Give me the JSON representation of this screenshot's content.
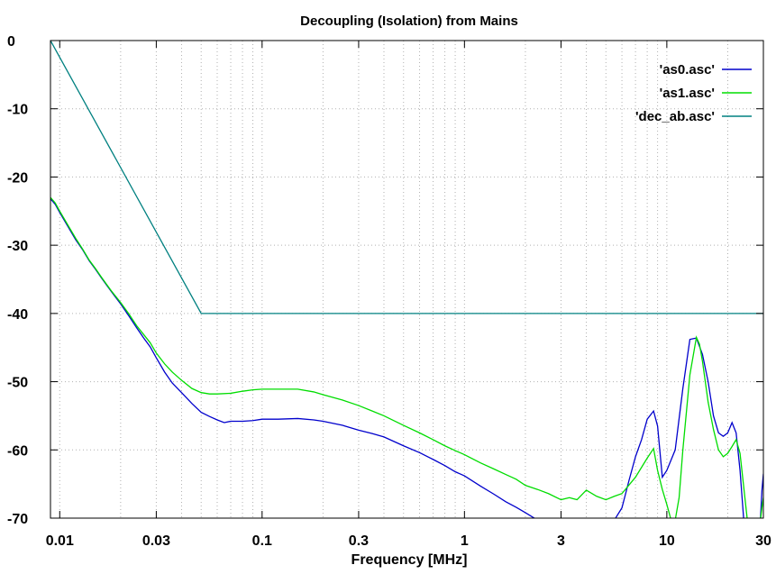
{
  "chart_data": {
    "type": "line",
    "title": "Decoupling (Isolation) from Mains",
    "xlabel": "Frequency [MHz]",
    "ylabel": "",
    "xscale": "log",
    "xlim": [
      0.009,
      30
    ],
    "ylim": [
      -70,
      0
    ],
    "x_ticks": [
      0.01,
      0.03,
      0.1,
      0.3,
      1,
      3,
      10,
      30
    ],
    "x_tick_labels": [
      "0.01",
      "0.03",
      "0.1",
      "0.3",
      "1",
      "3",
      "10",
      "30"
    ],
    "y_ticks": [
      0,
      -10,
      -20,
      -30,
      -40,
      -50,
      -60,
      -70
    ],
    "y_tick_labels": [
      "0",
      "-10",
      "-20",
      "-30",
      "-40",
      "-50",
      "-60",
      "-70"
    ],
    "grid": true,
    "legend_position": "top-right",
    "series": [
      {
        "name": "'as0.asc'",
        "color": "#0000cc",
        "points": [
          [
            0.009,
            -23.2
          ],
          [
            0.0095,
            -24
          ],
          [
            0.01,
            -25.2
          ],
          [
            0.011,
            -27.3
          ],
          [
            0.012,
            -29.2
          ],
          [
            0.013,
            -30.7
          ],
          [
            0.014,
            -32.3
          ],
          [
            0.015,
            -33.5
          ],
          [
            0.016,
            -34.7
          ],
          [
            0.017,
            -35.8
          ],
          [
            0.018,
            -36.8
          ],
          [
            0.02,
            -38.6
          ],
          [
            0.022,
            -40.4
          ],
          [
            0.024,
            -42.1
          ],
          [
            0.026,
            -43.6
          ],
          [
            0.028,
            -44.9
          ],
          [
            0.03,
            -46.5
          ],
          [
            0.033,
            -48.6
          ],
          [
            0.036,
            -50.2
          ],
          [
            0.04,
            -51.6
          ],
          [
            0.045,
            -53.2
          ],
          [
            0.05,
            -54.5
          ],
          [
            0.055,
            -55.1
          ],
          [
            0.06,
            -55.6
          ],
          [
            0.065,
            -56
          ],
          [
            0.07,
            -55.8
          ],
          [
            0.08,
            -55.8
          ],
          [
            0.09,
            -55.7
          ],
          [
            0.1,
            -55.5
          ],
          [
            0.12,
            -55.5
          ],
          [
            0.15,
            -55.4
          ],
          [
            0.18,
            -55.6
          ],
          [
            0.2,
            -55.8
          ],
          [
            0.25,
            -56.4
          ],
          [
            0.3,
            -57.1
          ],
          [
            0.35,
            -57.6
          ],
          [
            0.4,
            -58.1
          ],
          [
            0.5,
            -59.4
          ],
          [
            0.6,
            -60.4
          ],
          [
            0.7,
            -61.4
          ],
          [
            0.8,
            -62.3
          ],
          [
            0.9,
            -63.2
          ],
          [
            1.0,
            -63.8
          ],
          [
            1.2,
            -65.3
          ],
          [
            1.4,
            -66.5
          ],
          [
            1.6,
            -67.6
          ],
          [
            1.8,
            -68.4
          ],
          [
            2.0,
            -69.2
          ],
          [
            2.3,
            -70.3
          ],
          [
            5.5,
            -70.3
          ],
          [
            6.0,
            -68.5
          ],
          [
            6.5,
            -64.5
          ],
          [
            7.0,
            -61
          ],
          [
            7.5,
            -58.5
          ],
          [
            8.0,
            -55.5
          ],
          [
            8.6,
            -54.3
          ],
          [
            9.0,
            -56.5
          ],
          [
            9.5,
            -64
          ],
          [
            10.0,
            -63
          ],
          [
            11.0,
            -60
          ],
          [
            12.0,
            -51
          ],
          [
            13.0,
            -43.8
          ],
          [
            14.0,
            -43.6
          ],
          [
            15.0,
            -46
          ],
          [
            16.0,
            -50
          ],
          [
            17.0,
            -55
          ],
          [
            18.0,
            -57.5
          ],
          [
            19.0,
            -58
          ],
          [
            20.0,
            -57.5
          ],
          [
            21.0,
            -56
          ],
          [
            22.0,
            -57.5
          ],
          [
            23.0,
            -63
          ],
          [
            24.0,
            -70.3
          ],
          [
            29.0,
            -70.3
          ],
          [
            29.5,
            -66
          ],
          [
            30.0,
            -63.5
          ]
        ]
      },
      {
        "name": "'as1.asc'",
        "color": "#00dd00",
        "points": [
          [
            0.009,
            -23.0
          ],
          [
            0.0095,
            -23.8
          ],
          [
            0.01,
            -25.0
          ],
          [
            0.011,
            -27.1
          ],
          [
            0.012,
            -29.0
          ],
          [
            0.013,
            -30.6
          ],
          [
            0.014,
            -32.2
          ],
          [
            0.015,
            -33.4
          ],
          [
            0.016,
            -34.6
          ],
          [
            0.017,
            -35.7
          ],
          [
            0.018,
            -36.7
          ],
          [
            0.02,
            -38.4
          ],
          [
            0.022,
            -40.1
          ],
          [
            0.024,
            -41.8
          ],
          [
            0.026,
            -43.1
          ],
          [
            0.028,
            -44.3
          ],
          [
            0.03,
            -45.8
          ],
          [
            0.033,
            -47.4
          ],
          [
            0.036,
            -48.6
          ],
          [
            0.04,
            -49.8
          ],
          [
            0.045,
            -51.0
          ],
          [
            0.05,
            -51.6
          ],
          [
            0.055,
            -51.8
          ],
          [
            0.06,
            -51.8
          ],
          [
            0.07,
            -51.7
          ],
          [
            0.08,
            -51.4
          ],
          [
            0.09,
            -51.2
          ],
          [
            0.1,
            -51.1
          ],
          [
            0.12,
            -51.1
          ],
          [
            0.15,
            -51.1
          ],
          [
            0.18,
            -51.5
          ],
          [
            0.2,
            -51.9
          ],
          [
            0.25,
            -52.7
          ],
          [
            0.3,
            -53.5
          ],
          [
            0.35,
            -54.3
          ],
          [
            0.4,
            -55.0
          ],
          [
            0.5,
            -56.4
          ],
          [
            0.6,
            -57.5
          ],
          [
            0.7,
            -58.5
          ],
          [
            0.8,
            -59.4
          ],
          [
            0.9,
            -60.1
          ],
          [
            1.0,
            -60.7
          ],
          [
            1.2,
            -61.9
          ],
          [
            1.4,
            -62.8
          ],
          [
            1.6,
            -63.6
          ],
          [
            1.8,
            -64.3
          ],
          [
            2.0,
            -65.2
          ],
          [
            2.3,
            -65.8
          ],
          [
            2.6,
            -66.4
          ],
          [
            3.0,
            -67.3
          ],
          [
            3.3,
            -67.0
          ],
          [
            3.6,
            -67.3
          ],
          [
            4.0,
            -65.9
          ],
          [
            4.5,
            -66.8
          ],
          [
            5.0,
            -67.3
          ],
          [
            5.5,
            -66.8
          ],
          [
            6.0,
            -66.4
          ],
          [
            7.0,
            -64.0
          ],
          [
            8.0,
            -61.2
          ],
          [
            8.6,
            -59.8
          ],
          [
            9.0,
            -63.0
          ],
          [
            9.5,
            -65.8
          ],
          [
            10.0,
            -68.0
          ],
          [
            10.5,
            -70.3
          ],
          [
            11.0,
            -70.3
          ],
          [
            11.5,
            -67.0
          ],
          [
            12.0,
            -60.0
          ],
          [
            13.0,
            -49.0
          ],
          [
            14.0,
            -43.5
          ],
          [
            14.5,
            -44.5
          ],
          [
            15.0,
            -47.0
          ],
          [
            16.0,
            -53.0
          ],
          [
            17.0,
            -57.0
          ],
          [
            18.0,
            -60.0
          ],
          [
            19.0,
            -61.0
          ],
          [
            20.0,
            -60.5
          ],
          [
            21.0,
            -59.5
          ],
          [
            22.0,
            -58.5
          ],
          [
            23.0,
            -60.5
          ],
          [
            24.0,
            -65.5
          ],
          [
            25.0,
            -70.3
          ],
          [
            29.0,
            -70.3
          ],
          [
            29.5,
            -68.5
          ],
          [
            30.0,
            -67.0
          ]
        ]
      },
      {
        "name": "'dec_ab.asc'",
        "color": "#008080",
        "points": [
          [
            0.009,
            0
          ],
          [
            0.05,
            -40
          ],
          [
            30,
            -40
          ]
        ]
      }
    ]
  }
}
